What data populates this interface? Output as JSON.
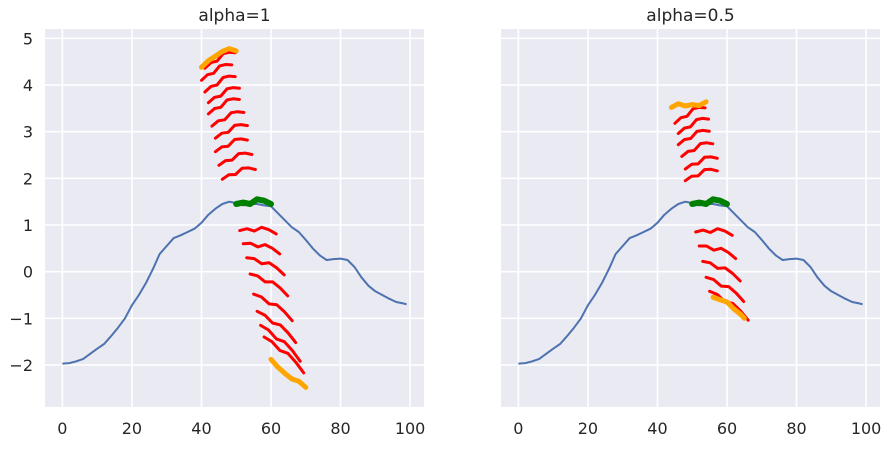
{
  "chart_data": [
    {
      "type": "line",
      "title": "alpha=1",
      "xlim": [
        -5,
        104
      ],
      "ylim": [
        -2.9,
        5.2
      ],
      "xticks": [
        0,
        20,
        40,
        60,
        80,
        100
      ],
      "yticks": [
        -2,
        -1,
        0,
        1,
        2,
        3,
        4,
        5
      ],
      "grid": true,
      "colors": {
        "base": "#4c72b0",
        "center": "#008000",
        "spread": "#ff0000",
        "extreme": "#ffa500",
        "background": "#eaeaf2"
      },
      "series": [
        {
          "role": "base",
          "x": [
            0,
            2,
            4,
            6,
            8,
            10,
            12,
            14,
            16,
            18,
            20,
            22,
            24,
            26,
            28,
            30,
            32,
            34,
            36,
            38,
            40,
            42,
            44,
            46,
            48,
            50,
            52,
            54,
            56,
            58,
            60,
            62,
            64,
            66,
            68,
            70,
            72,
            74,
            76,
            78,
            80,
            82,
            84,
            86,
            88,
            90,
            92,
            94,
            96,
            98,
            99
          ],
          "y": [
            -1.97,
            -1.96,
            -1.92,
            -1.87,
            -1.76,
            -1.65,
            -1.55,
            -1.38,
            -1.2,
            -1.0,
            -0.72,
            -0.5,
            -0.25,
            0.05,
            0.38,
            0.55,
            0.72,
            0.78,
            0.85,
            0.92,
            1.05,
            1.22,
            1.35,
            1.45,
            1.5,
            1.47,
            1.42,
            1.45,
            1.45,
            1.42,
            1.4,
            1.25,
            1.1,
            0.95,
            0.85,
            0.68,
            0.5,
            0.35,
            0.25,
            0.27,
            0.28,
            0.25,
            0.1,
            -0.12,
            -0.3,
            -0.42,
            -0.5,
            -0.58,
            -0.65,
            -0.68,
            -0.7
          ]
        },
        {
          "role": "center",
          "x": [
            50,
            52,
            54,
            56,
            58,
            60
          ],
          "y": [
            1.45,
            1.48,
            1.45,
            1.55,
            1.52,
            1.45
          ]
        }
      ],
      "spread_series": {
        "x": [
          0,
          2,
          4,
          6,
          8,
          10
        ],
        "shape": [
          0,
          0.06,
          0.03,
          0.13,
          0.1,
          0.03
        ],
        "up_segments": [
          {
            "x0": 41,
            "dx": 0.87,
            "y0": 4.36,
            "slope": 0.03
          },
          {
            "x0": 40,
            "dx": 0.87,
            "y0": 4.1,
            "slope": 0.03
          },
          {
            "x0": 41,
            "dx": 0.87,
            "y0": 3.85,
            "slope": 0.03
          },
          {
            "x0": 42,
            "dx": 0.89,
            "y0": 3.62,
            "slope": 0.028
          },
          {
            "x0": 42,
            "dx": 0.89,
            "y0": 3.38,
            "slope": 0.028
          },
          {
            "x0": 43,
            "dx": 0.92,
            "y0": 3.12,
            "slope": 0.026
          },
          {
            "x0": 44,
            "dx": 0.92,
            "y0": 2.86,
            "slope": 0.024
          },
          {
            "x0": 44,
            "dx": 0.92,
            "y0": 2.57,
            "slope": 0.022
          },
          {
            "x0": 45,
            "dx": 0.95,
            "y0": 2.28,
            "slope": 0.02
          },
          {
            "x0": 46,
            "dx": 0.95,
            "y0": 1.98,
            "slope": 0.018
          }
        ],
        "down_segments": [
          {
            "x0": 51,
            "dx": 1.05,
            "y0": 0.88,
            "slope": -0.01
          },
          {
            "x0": 52,
            "dx": 1.05,
            "y0": 0.6,
            "slope": -0.025
          },
          {
            "x0": 53,
            "dx": 1.08,
            "y0": 0.3,
            "slope": -0.04
          },
          {
            "x0": 54,
            "dx": 1.08,
            "y0": -0.05,
            "slope": -0.05
          },
          {
            "x0": 55,
            "dx": 1.11,
            "y0": -0.48,
            "slope": -0.06
          },
          {
            "x0": 56,
            "dx": 1.11,
            "y0": -0.85,
            "slope": -0.07
          },
          {
            "x0": 57,
            "dx": 1.14,
            "y0": -1.15,
            "slope": -0.08
          },
          {
            "x0": 58,
            "dx": 1.14,
            "y0": -1.4,
            "slope": -0.08
          }
        ]
      },
      "extreme_series": [
        {
          "x": [
            40,
            42,
            44,
            46,
            48,
            50
          ],
          "y": [
            4.38,
            4.52,
            4.62,
            4.72,
            4.78,
            4.73
          ]
        },
        {
          "x": [
            60,
            62,
            64,
            66,
            68,
            70
          ],
          "y": [
            -1.88,
            -2.05,
            -2.18,
            -2.3,
            -2.35,
            -2.48
          ]
        }
      ]
    },
    {
      "type": "line",
      "title": "alpha=0.5",
      "xlim": [
        -5,
        104
      ],
      "ylim": [
        -2.9,
        5.2
      ],
      "xticks": [
        0,
        20,
        40,
        60,
        80,
        100
      ],
      "yticks": [
        -2,
        -1,
        0,
        1,
        2,
        3,
        4,
        5
      ],
      "grid": true,
      "colors": {
        "base": "#4c72b0",
        "center": "#008000",
        "spread": "#ff0000",
        "extreme": "#ffa500",
        "background": "#eaeaf2"
      },
      "series": [
        {
          "role": "base",
          "x": [
            0,
            2,
            4,
            6,
            8,
            10,
            12,
            14,
            16,
            18,
            20,
            22,
            24,
            26,
            28,
            30,
            32,
            34,
            36,
            38,
            40,
            42,
            44,
            46,
            48,
            50,
            52,
            54,
            56,
            58,
            60,
            62,
            64,
            66,
            68,
            70,
            72,
            74,
            76,
            78,
            80,
            82,
            84,
            86,
            88,
            90,
            92,
            94,
            96,
            98,
            99
          ],
          "y": [
            -1.97,
            -1.96,
            -1.92,
            -1.87,
            -1.76,
            -1.65,
            -1.55,
            -1.38,
            -1.2,
            -1.0,
            -0.72,
            -0.5,
            -0.25,
            0.05,
            0.38,
            0.55,
            0.72,
            0.78,
            0.85,
            0.92,
            1.05,
            1.22,
            1.35,
            1.45,
            1.5,
            1.47,
            1.42,
            1.45,
            1.45,
            1.42,
            1.4,
            1.25,
            1.1,
            0.95,
            0.85,
            0.68,
            0.5,
            0.35,
            0.25,
            0.27,
            0.28,
            0.25,
            0.1,
            -0.12,
            -0.3,
            -0.42,
            -0.5,
            -0.58,
            -0.65,
            -0.68,
            -0.7
          ]
        },
        {
          "role": "center",
          "x": [
            50,
            52,
            54,
            56,
            58,
            60
          ],
          "y": [
            1.45,
            1.48,
            1.45,
            1.55,
            1.52,
            1.45
          ]
        }
      ],
      "spread_series": {
        "x": [
          0,
          2,
          4,
          6,
          8,
          10
        ],
        "shape": [
          0,
          0.06,
          0.03,
          0.13,
          0.1,
          0.03
        ],
        "up_segments": [
          {
            "x0": 45,
            "dx": 0.87,
            "y0": 3.18,
            "slope": 0.03
          },
          {
            "x0": 46,
            "dx": 0.87,
            "y0": 2.96,
            "slope": 0.028
          },
          {
            "x0": 46,
            "dx": 0.89,
            "y0": 2.72,
            "slope": 0.026
          },
          {
            "x0": 47,
            "dx": 0.89,
            "y0": 2.47,
            "slope": 0.024
          },
          {
            "x0": 48,
            "dx": 0.92,
            "y0": 2.2,
            "slope": 0.02
          },
          {
            "x0": 48,
            "dx": 0.92,
            "y0": 1.95,
            "slope": 0.018
          }
        ],
        "down_segments": [
          {
            "x0": 51,
            "dx": 1.05,
            "y0": 0.85,
            "slope": -0.01
          },
          {
            "x0": 52,
            "dx": 1.05,
            "y0": 0.55,
            "slope": -0.03
          },
          {
            "x0": 53,
            "dx": 1.08,
            "y0": 0.22,
            "slope": -0.045
          },
          {
            "x0": 54,
            "dx": 1.08,
            "y0": -0.12,
            "slope": -0.055
          },
          {
            "x0": 55,
            "dx": 1.11,
            "y0": -0.42,
            "slope": -0.065
          }
        ]
      },
      "extreme_series": [
        {
          "x": [
            44,
            46,
            48,
            50,
            52,
            54
          ],
          "y": [
            3.52,
            3.6,
            3.55,
            3.58,
            3.56,
            3.64
          ]
        },
        {
          "x": [
            56,
            58,
            60,
            62,
            64,
            65
          ],
          "y": [
            -0.55,
            -0.6,
            -0.65,
            -0.8,
            -0.92,
            -1.0
          ]
        }
      ]
    }
  ]
}
